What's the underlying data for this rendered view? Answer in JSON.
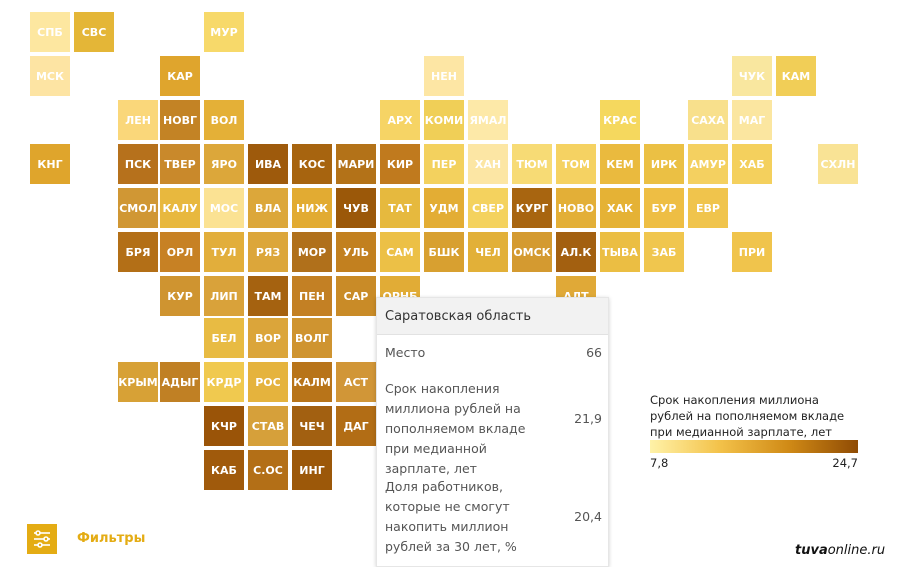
{
  "tiles": [
    {
      "label": "СПБ",
      "color": "#fde7a0"
    },
    {
      "label": "СВС",
      "color": "#e4b637"
    },
    {
      "label": "МУР",
      "color": "#f7d96a"
    },
    {
      "label": "МСК",
      "color": "#fde4a3"
    },
    {
      "label": "КАР",
      "color": "#dfa52d"
    },
    {
      "label": "НЕН",
      "color": "#fde6a4"
    },
    {
      "label": "ЧУК",
      "color": "#f9e79f"
    },
    {
      "label": "КАМ",
      "color": "#f1ce57"
    },
    {
      "label": "ЛЕН",
      "color": "#fad77a"
    },
    {
      "label": "НОВГ",
      "color": "#c38325"
    },
    {
      "label": "ВОЛ",
      "color": "#e4b037"
    },
    {
      "label": "АРХ",
      "color": "#f6d465"
    },
    {
      "label": "КОМИ",
      "color": "#f0cf57"
    },
    {
      "label": "ЯМАЛ",
      "color": "#fde9a8"
    },
    {
      "label": "КРАС",
      "color": "#f5d85e"
    },
    {
      "label": "САХА",
      "color": "#f8e08c"
    },
    {
      "label": "МАГ",
      "color": "#fbe6a0"
    },
    {
      "label": "КНГ",
      "color": "#dfa52c"
    },
    {
      "label": "ПСК",
      "color": "#b6711c"
    },
    {
      "label": "ТВЕР",
      "color": "#c9892b"
    },
    {
      "label": "ЯРО",
      "color": "#dca73a"
    },
    {
      "label": "ИВА",
      "color": "#9e5a0c"
    },
    {
      "label": "КОС",
      "color": "#a7640f"
    },
    {
      "label": "МАРИ",
      "color": "#b37218"
    },
    {
      "label": "КИР",
      "color": "#c07a1e"
    },
    {
      "label": "ПЕР",
      "color": "#f3d15e"
    },
    {
      "label": "ХАН",
      "color": "#fce6a4"
    },
    {
      "label": "ТЮМ",
      "color": "#f7db75"
    },
    {
      "label": "ТОМ",
      "color": "#f5d262"
    },
    {
      "label": "КЕМ",
      "color": "#eaba3e"
    },
    {
      "label": "ИРК",
      "color": "#ebc044"
    },
    {
      "label": "АМУР",
      "color": "#f4d060"
    },
    {
      "label": "ХАБ",
      "color": "#f4d05d"
    },
    {
      "label": "СХЛН",
      "color": "#f9e395"
    },
    {
      "label": "СМОЛ",
      "color": "#d09734"
    },
    {
      "label": "КАЛУ",
      "color": "#e8b83e"
    },
    {
      "label": "МОС",
      "color": "#fbe293"
    },
    {
      "label": "ВЛА",
      "color": "#dca73a"
    },
    {
      "label": "НИЖ",
      "color": "#e2ab32"
    },
    {
      "label": "ЧУВ",
      "color": "#9b5809"
    },
    {
      "label": "ТАТ",
      "color": "#e6b93e"
    },
    {
      "label": "УДМ",
      "color": "#e3ad34"
    },
    {
      "label": "СВЕР",
      "color": "#f4d25e"
    },
    {
      "label": "КУРГ",
      "color": "#a86510"
    },
    {
      "label": "НОВО",
      "color": "#e3af37"
    },
    {
      "label": "ХАК",
      "color": "#e5b235"
    },
    {
      "label": "БУР",
      "color": "#eebe44"
    },
    {
      "label": "ЕВР",
      "color": "#f0c44c"
    },
    {
      "label": "БРЯ",
      "color": "#b36f17"
    },
    {
      "label": "ОРЛ",
      "color": "#c78124"
    },
    {
      "label": "ТУЛ",
      "color": "#e2ae3b"
    },
    {
      "label": "РЯЗ",
      "color": "#dca63a"
    },
    {
      "label": "МОР",
      "color": "#b0701b"
    },
    {
      "label": "УЛЬ",
      "color": "#c2801f"
    },
    {
      "label": "САМ",
      "color": "#ecc046"
    },
    {
      "label": "БШК",
      "color": "#d8a030"
    },
    {
      "label": "ЧЕЛ",
      "color": "#e2b038"
    },
    {
      "label": "ОМСК",
      "color": "#d49a30"
    },
    {
      "label": "АЛ.К",
      "color": "#a36010"
    },
    {
      "label": "ТЫВА",
      "color": "#ebbe43"
    },
    {
      "label": "ЗАБ",
      "color": "#f0c64e"
    },
    {
      "label": "ПРИ",
      "color": "#f0c44c"
    },
    {
      "label": "КУР",
      "color": "#cf9430"
    },
    {
      "label": "ЛИП",
      "color": "#d9a23a"
    },
    {
      "label": "ТАМ",
      "color": "#a56210"
    },
    {
      "label": "ПЕН",
      "color": "#c38024"
    },
    {
      "label": "САР",
      "color": "#c98b27"
    },
    {
      "label": "ОРНБ",
      "color": "#e1ac36"
    },
    {
      "label": "АЛТ",
      "color": "#e0a937"
    },
    {
      "label": "БЕЛ",
      "color": "#e8bb43"
    },
    {
      "label": "ВОР",
      "color": "#dba53a"
    },
    {
      "label": "ВОЛГ",
      "color": "#cf9430"
    },
    {
      "label": "КРЫМ",
      "color": "#d7a136"
    },
    {
      "label": "АДЫГ",
      "color": "#c08024"
    },
    {
      "label": "КРДР",
      "color": "#f0c94f"
    },
    {
      "label": "РОС",
      "color": "#e5b33d"
    },
    {
      "label": "КАЛМ",
      "color": "#b87419"
    },
    {
      "label": "АСТ",
      "color": "#d19637"
    },
    {
      "label": "КЧР",
      "color": "#9a5408"
    },
    {
      "label": "СТАВ",
      "color": "#d6a03a"
    },
    {
      "label": "ЧЕЧ",
      "color": "#a26011"
    },
    {
      "label": "ДАГ",
      "color": "#b26d15"
    },
    {
      "label": "КАБ",
      "color": "#a05a0c"
    },
    {
      "label": "С.ОС",
      "color": "#b36f17"
    },
    {
      "label": "ИНГ",
      "color": "#9c5809"
    }
  ],
  "tooltip": {
    "title": "Саратовская область",
    "rows": [
      {
        "label": "Место",
        "value": "66"
      },
      {
        "label": "Срок накопления миллиона рублей на пополняемом вкладе при медианной зарплате, лет",
        "value": "21,9"
      },
      {
        "label": "Доля работников, которые не смогут накопить миллион рублей за 30 лет, %",
        "value": "20,4"
      }
    ]
  },
  "legend": {
    "title": "Срок накопления миллиона рублей на пополняемом вкладе при медианной зарплате, лет",
    "min": "7,8",
    "max": "24,7"
  },
  "filters": {
    "label": "Фильтры",
    "icon": "filter-sliders-icon"
  },
  "credit": {
    "bold": "tuva",
    "rest": "online.ru"
  }
}
